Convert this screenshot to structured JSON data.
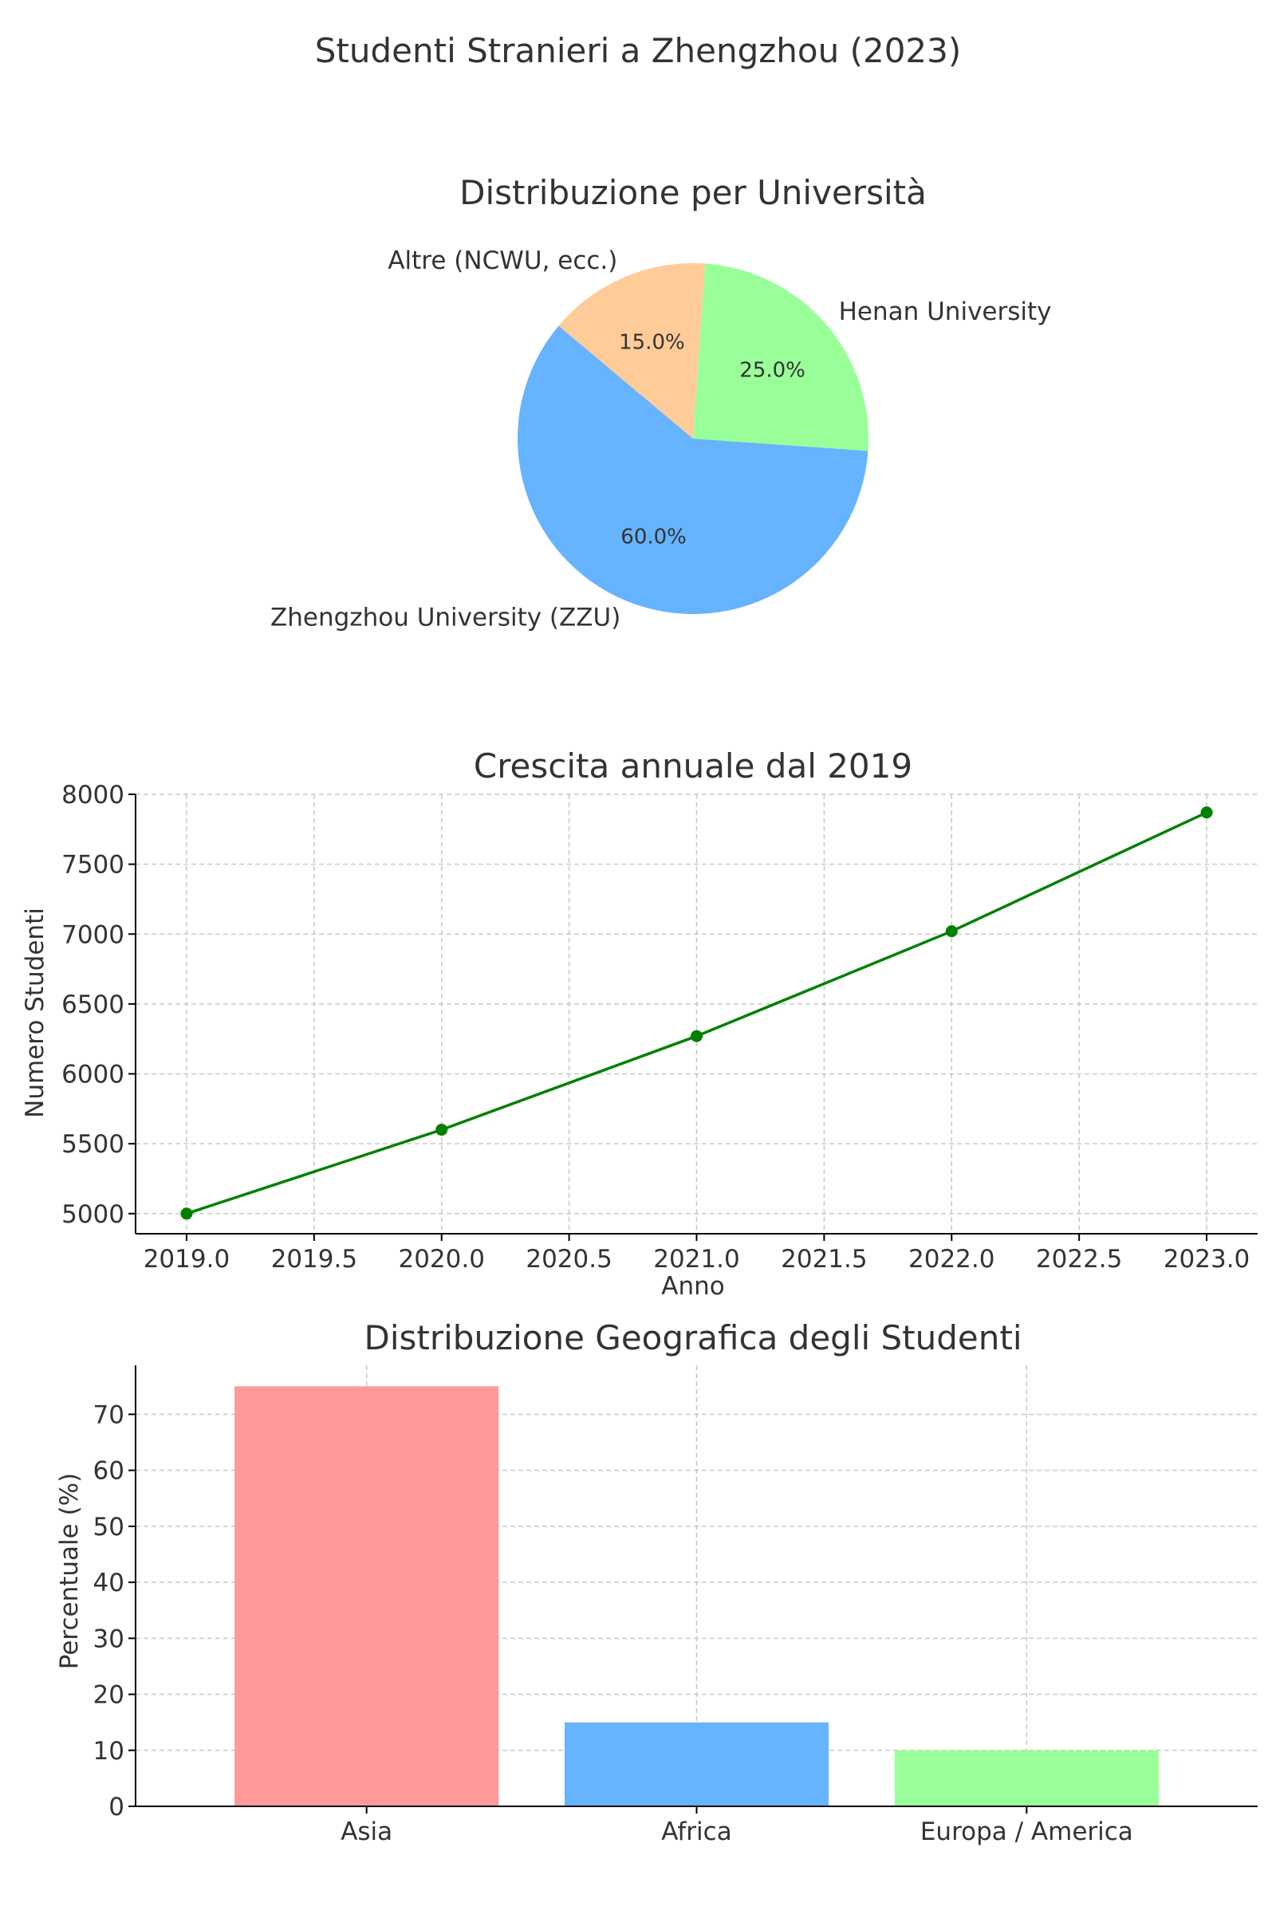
{
  "figure_title": "Studenti Stranieri a Zhengzhou (2023)",
  "colors": {
    "pie": [
      "#66b3ff",
      "#99ff99",
      "#ffcc99"
    ],
    "line": "#008000",
    "bars": [
      "#ff9999",
      "#66b3ff",
      "#99ff99"
    ],
    "grid": "#c8c8c8",
    "axis": "#000000",
    "text": "#333333"
  },
  "chart_data": [
    {
      "type": "pie",
      "title": "Distribuzione per Università",
      "labels": [
        "Zhengzhou University (ZZU)",
        "Henan University",
        "Altre (NCWU, ecc.)"
      ],
      "values": [
        60,
        25,
        15
      ],
      "value_labels": [
        "60.0%",
        "25.0%",
        "15.0%"
      ],
      "start_angle_deg": 140,
      "direction": "counterclockwise"
    },
    {
      "type": "line",
      "title": "Crescita annuale dal 2019",
      "xlabel": "Anno",
      "ylabel": "Numero Studenti",
      "x": [
        2019,
        2020,
        2021,
        2022,
        2023
      ],
      "y": [
        5000,
        5600,
        6270,
        7020,
        7870
      ],
      "xlim": [
        2018.8,
        2023.2
      ],
      "ylim": [
        4856,
        8000
      ],
      "xticks": [
        2019.0,
        2019.5,
        2020.0,
        2020.5,
        2021.0,
        2021.5,
        2022.0,
        2022.5,
        2023.0
      ],
      "xtick_labels": [
        "2019.0",
        "2019.5",
        "2020.0",
        "2020.5",
        "2021.0",
        "2021.5",
        "2022.0",
        "2022.5",
        "2023.0"
      ],
      "yticks": [
        5000,
        5500,
        6000,
        6500,
        7000,
        7500,
        8000
      ],
      "ytick_labels": [
        "5000",
        "5500",
        "6000",
        "6500",
        "7000",
        "7500",
        "8000"
      ],
      "grid": true,
      "marker": "circle"
    },
    {
      "type": "bar",
      "title": "Distribuzione Geografica degli Studenti",
      "xlabel": "",
      "ylabel": "Percentuale (%)",
      "categories": [
        "Asia",
        "Africa",
        "Europa / America"
      ],
      "values": [
        75,
        15,
        10
      ],
      "ylim": [
        0,
        78.75
      ],
      "yticks": [
        0,
        10,
        20,
        30,
        40,
        50,
        60,
        70
      ],
      "ytick_labels": [
        "0",
        "10",
        "20",
        "30",
        "40",
        "50",
        "60",
        "70"
      ],
      "grid": true
    }
  ]
}
